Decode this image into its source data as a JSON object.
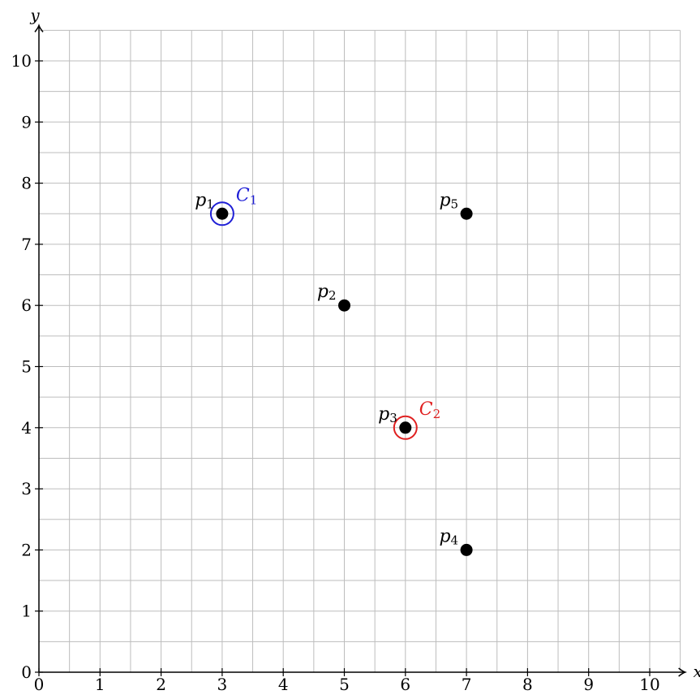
{
  "chart_data": {
    "type": "scatter",
    "xlabel": "x",
    "ylabel": "y",
    "xlim": [
      0,
      10.5
    ],
    "ylim": [
      0,
      10.5
    ],
    "xticks": [
      0,
      1,
      2,
      3,
      4,
      5,
      6,
      7,
      8,
      9,
      10
    ],
    "yticks": [
      0,
      1,
      2,
      3,
      4,
      5,
      6,
      7,
      8,
      9,
      10
    ],
    "grid": true,
    "grid_step": 0.5,
    "points": [
      {
        "label": "p",
        "sub": "1",
        "x": 3,
        "y": 7.5
      },
      {
        "label": "p",
        "sub": "2",
        "x": 5,
        "y": 6
      },
      {
        "label": "p",
        "sub": "3",
        "x": 6,
        "y": 4
      },
      {
        "label": "p",
        "sub": "4",
        "x": 7,
        "y": 2
      },
      {
        "label": "p",
        "sub": "5",
        "x": 7,
        "y": 7.5
      }
    ],
    "centroids": [
      {
        "label": "C",
        "sub": "1",
        "x": 3,
        "y": 7.5,
        "color": "#1f1fd6"
      },
      {
        "label": "C",
        "sub": "2",
        "x": 6,
        "y": 4,
        "color": "#e02020"
      }
    ],
    "colors": {
      "grid": "#bdbdbd",
      "axis": "#000000",
      "point": "#000000"
    }
  }
}
